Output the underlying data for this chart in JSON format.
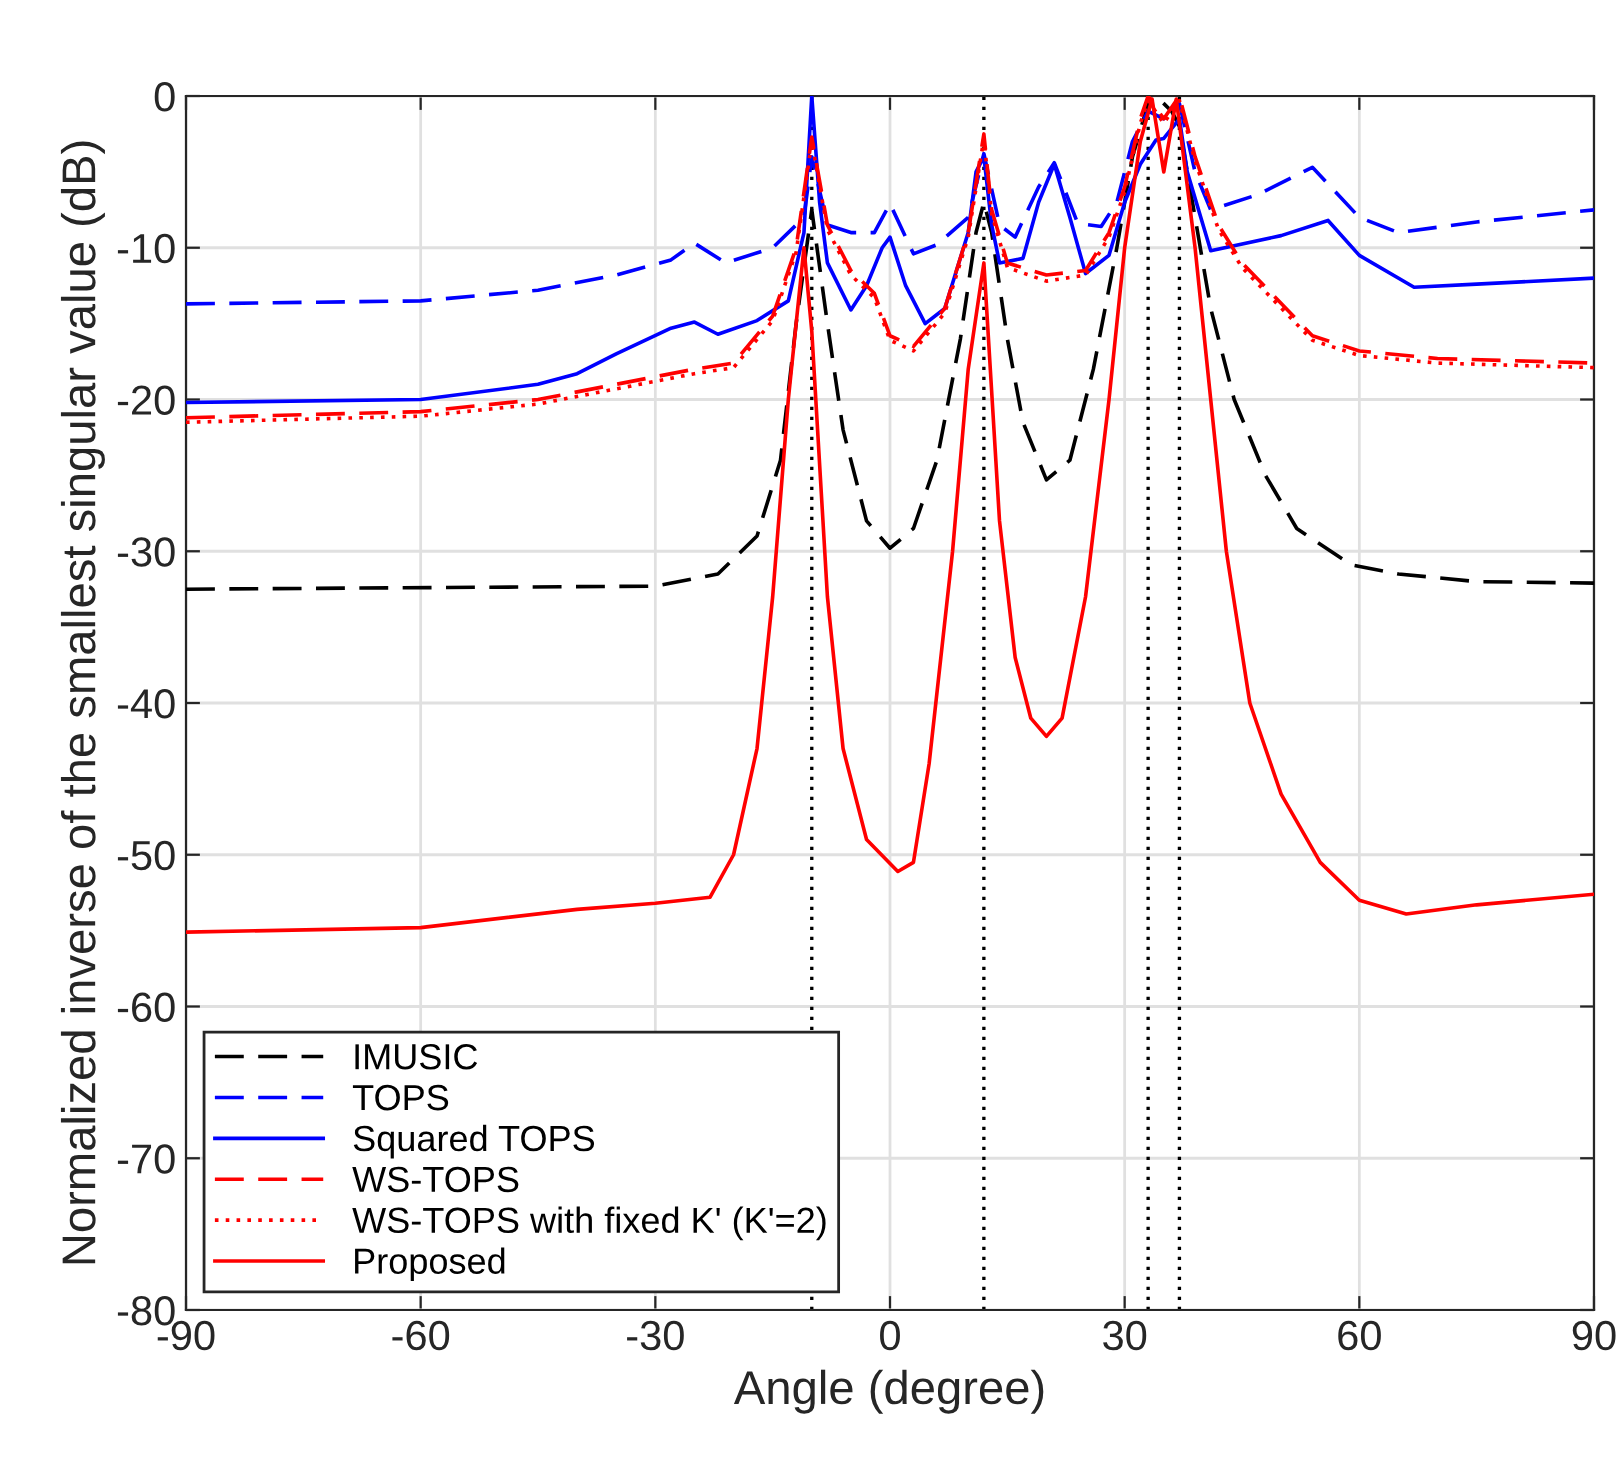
{
  "chart_data": {
    "type": "line",
    "xlabel": "Angle (degree)",
    "ylabel": "Normalized inverse of the smallest singular value (dB)",
    "xlim": [
      -90,
      90
    ],
    "ylim": [
      -80,
      0
    ],
    "xticks": [
      -90,
      -60,
      -30,
      0,
      30,
      60,
      90
    ],
    "yticks": [
      -80,
      -70,
      -60,
      -50,
      -40,
      -30,
      -20,
      -10,
      0
    ],
    "grid": true,
    "legend": "bottom left",
    "marker": "none",
    "ref_lines": [
      {
        "axis": "x",
        "value": -10,
        "color": "#000000",
        "line_style": "dotted"
      },
      {
        "axis": "x",
        "value": 12,
        "color": "#000000",
        "line_style": "dotted"
      },
      {
        "axis": "x",
        "value": 33,
        "color": "#000000",
        "line_style": "dotted"
      },
      {
        "axis": "x",
        "value": 37,
        "color": "#000000",
        "line_style": "dotted"
      }
    ],
    "series": [
      {
        "name": "IMUSIC",
        "color": "#000000",
        "line_style": "dashed",
        "x": [
          -90,
          -30,
          -22,
          -17,
          -14,
          -12,
          -10,
          -8,
          -6,
          -3,
          0,
          3,
          6,
          9,
          11,
          12,
          13,
          15,
          17,
          20,
          23,
          26,
          29,
          31,
          33,
          34,
          36,
          37,
          39,
          41,
          44,
          48,
          52,
          59,
          65,
          75,
          90
        ],
        "values": [
          -32.5,
          -32.3,
          -31.5,
          -29,
          -24,
          -15,
          -7.5,
          -15,
          -22,
          -28,
          -29.8,
          -28.5,
          -24,
          -16,
          -9,
          -7,
          -9,
          -16,
          -21.5,
          -25.3,
          -24,
          -18,
          -10,
          -4,
          -0.5,
          0,
          -1,
          -2,
          -8,
          -14,
          -20,
          -25,
          -28.5,
          -30.9,
          -31.5,
          -32,
          -32.1
        ]
      },
      {
        "name": "TOPS",
        "color": "#0000ff",
        "line_style": "dashed",
        "x": [
          -90,
          -60,
          -45,
          -35,
          -28,
          -25,
          -21,
          -15,
          -11,
          -10,
          -8,
          -5,
          -2,
          0,
          3,
          6,
          10,
          12,
          14,
          16,
          19,
          21,
          24,
          27,
          29,
          31,
          33,
          35,
          37,
          39,
          41,
          47,
          54,
          60,
          65,
          75,
          90
        ],
        "values": [
          -13.7,
          -13.5,
          -12.8,
          -11.8,
          -10.8,
          -9.7,
          -11,
          -10,
          -8,
          -4,
          -8.5,
          -9,
          -9,
          -7.1,
          -10.4,
          -9.8,
          -8,
          -3.8,
          -8.5,
          -9.3,
          -6,
          -4.4,
          -8.4,
          -8.6,
          -7,
          -3,
          -1,
          -1.5,
          -0.5,
          -5,
          -7.5,
          -6.5,
          -4.7,
          -8,
          -9,
          -8.3,
          -7.5
        ]
      },
      {
        "name": "Squared TOPS",
        "color": "#0000ff",
        "line_style": "solid",
        "x": [
          -90,
          -60,
          -45,
          -40,
          -35,
          -28,
          -25,
          -22,
          -17,
          -13,
          -11,
          -10,
          -9,
          -8,
          -5,
          -3,
          -1,
          0,
          2,
          4.5,
          7,
          10,
          11,
          12,
          13,
          14,
          17,
          19,
          21,
          23,
          25,
          28,
          30,
          32,
          34,
          35,
          37,
          38,
          41,
          50,
          56,
          60,
          67,
          75,
          90
        ],
        "values": [
          -20.2,
          -20,
          -19,
          -18.3,
          -17,
          -15.3,
          -14.9,
          -15.7,
          -14.8,
          -13.5,
          -9,
          0,
          -7,
          -11,
          -14.1,
          -12.5,
          -10,
          -9.3,
          -12.5,
          -15,
          -14,
          -9,
          -5,
          -4,
          -8.5,
          -11,
          -10.7,
          -7,
          -4.5,
          -8,
          -11.7,
          -10.5,
          -7,
          -4.5,
          -2.9,
          -2.8,
          -1.5,
          -5,
          -10.2,
          -9.2,
          -8.2,
          -10.5,
          -12.6,
          -12.4,
          -12
        ]
      },
      {
        "name": "WS-TOPS",
        "color": "#ff0000",
        "line_style": "dashed",
        "x": [
          -90,
          -60,
          -45,
          -35,
          -25,
          -20,
          -15,
          -12,
          -10,
          -8,
          -5,
          -2,
          0,
          3,
          7,
          10,
          12,
          13,
          15,
          20,
          25,
          28,
          30,
          32,
          33,
          35,
          37,
          39,
          42,
          45,
          54,
          60,
          70,
          90
        ],
        "values": [
          -21.2,
          -20.8,
          -20,
          -19,
          -18,
          -17.6,
          -14.5,
          -10,
          -2.7,
          -8.5,
          -11.5,
          -13,
          -15.8,
          -16.5,
          -14,
          -9,
          -2.5,
          -7.5,
          -11,
          -11.8,
          -11.5,
          -9,
          -6,
          -1.5,
          0,
          -1.5,
          0,
          -4,
          -8.5,
          -11,
          -15.8,
          -16.8,
          -17.3,
          -17.6
        ]
      },
      {
        "name": "WS-TOPS with fixed K' (K'=2)",
        "color": "#ff0000",
        "line_style": "dotted",
        "x": [
          -90,
          -60,
          -45,
          -35,
          -25,
          -20,
          -15,
          -12,
          -10,
          -8,
          -5,
          -2,
          0,
          3,
          7,
          10,
          12,
          13,
          15,
          20,
          25,
          28,
          30,
          32,
          33,
          35,
          37,
          39,
          42,
          45,
          54,
          60,
          70,
          90
        ],
        "values": [
          -21.5,
          -21.1,
          -20.3,
          -19.3,
          -18.3,
          -17.9,
          -14.8,
          -10.3,
          -3,
          -8.8,
          -11.8,
          -13.3,
          -16.1,
          -16.8,
          -14.3,
          -9.3,
          -2.8,
          -7.8,
          -11.3,
          -12.2,
          -11.8,
          -9.3,
          -6.3,
          -1.8,
          -0.3,
          -1.8,
          -0.3,
          -4.3,
          -8.8,
          -11.3,
          -16.1,
          -17.1,
          -17.6,
          -17.9
        ]
      },
      {
        "name": "Proposed",
        "color": "#ff0000",
        "line_style": "solid",
        "x": [
          -90,
          -60,
          -40,
          -30,
          -23,
          -20,
          -17,
          -15,
          -13,
          -11,
          -10,
          -8,
          -6,
          -3,
          1,
          3,
          5,
          8,
          10,
          12,
          14,
          16,
          18,
          20,
          22,
          25,
          28,
          30,
          32,
          33.5,
          35,
          36.6,
          39,
          41,
          43,
          46,
          50,
          55,
          60,
          66,
          75,
          90
        ],
        "values": [
          -55.1,
          -54.8,
          -53.6,
          -53.2,
          -52.8,
          -50,
          -43,
          -33,
          -20,
          -10,
          -15.5,
          -33,
          -43,
          -49,
          -51.1,
          -50.5,
          -44,
          -30,
          -18,
          -11,
          -28,
          -37,
          -41,
          -42.2,
          -41,
          -33,
          -20,
          -10,
          -3,
          -0.2,
          -5,
          -0.2,
          -10,
          -20,
          -30,
          -40,
          -46,
          -50.5,
          -53,
          -53.9,
          -53.3,
          -52.6
        ]
      }
    ]
  }
}
